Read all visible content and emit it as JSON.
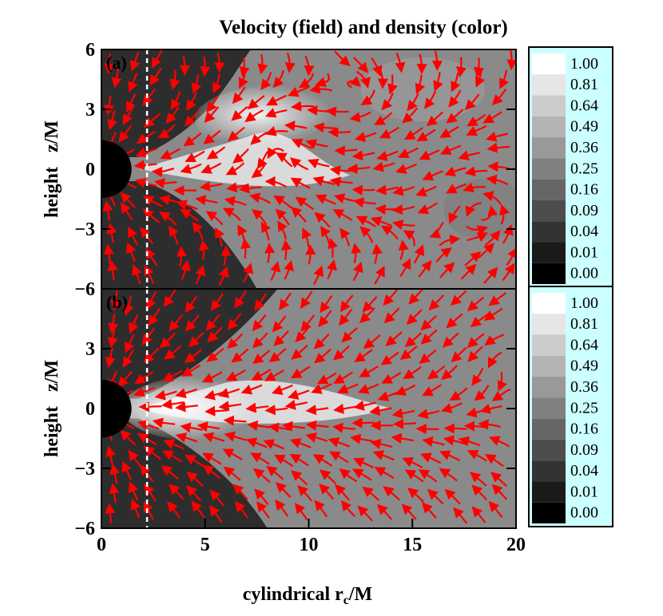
{
  "chart_data": {
    "type": "heatmap",
    "title": "Velocity (field) and density (color)",
    "xlabel": "cylindrical",
    "xlabel_var": "r",
    "xlabel_sub": "c",
    "xlabel_unit": "/M",
    "ylabel": "height   z/M",
    "xlim": [
      0,
      20
    ],
    "ylim": [
      -6,
      6
    ],
    "x_ticks": [
      0,
      5,
      10,
      15,
      20
    ],
    "y_ticks": [
      6,
      3,
      0,
      -3,
      -6
    ],
    "x_tick_labels": [
      "0",
      "5",
      "10",
      "15",
      "20"
    ],
    "y_tick_labels": [
      "6",
      "3",
      "0",
      "−3",
      "−6"
    ],
    "vline_x": 2.2,
    "colormap": "grayscale",
    "arrow_color": "#ff0000",
    "colorbar_bg": "#ccffff",
    "colorbar_levels": [
      "1.00",
      "0.81",
      "0.64",
      "0.49",
      "0.36",
      "0.25",
      "0.16",
      "0.09",
      "0.04",
      "0.01",
      "0.00"
    ],
    "panels": [
      {
        "label": "(a)"
      },
      {
        "label": "(b)"
      }
    ]
  }
}
